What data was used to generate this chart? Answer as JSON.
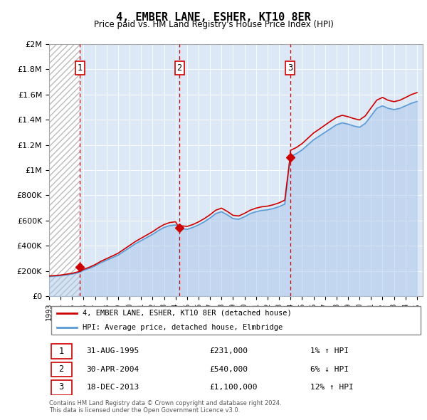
{
  "title": "4, EMBER LANE, ESHER, KT10 8ER",
  "subtitle": "Price paid vs. HM Land Registry's House Price Index (HPI)",
  "footer": "Contains HM Land Registry data © Crown copyright and database right 2024.\nThis data is licensed under the Open Government Licence v3.0.",
  "legend_line1": "4, EMBER LANE, ESHER, KT10 8ER (detached house)",
  "legend_line2": "HPI: Average price, detached house, Elmbridge",
  "sales": [
    {
      "num": 1,
      "date": "31-AUG-1995",
      "year": 1995.67,
      "price": 231000,
      "price_str": "£231,000",
      "label": "1% ↑ HPI"
    },
    {
      "num": 2,
      "date": "30-APR-2004",
      "year": 2004.33,
      "price": 540000,
      "price_str": "£540,000",
      "label": "6% ↓ HPI"
    },
    {
      "num": 3,
      "date": "18-DEC-2013",
      "year": 2013.96,
      "price": 1100000,
      "price_str": "£1,100,000",
      "label": "12% ↑ HPI"
    }
  ],
  "yticks": [
    0,
    200000,
    400000,
    600000,
    800000,
    1000000,
    1200000,
    1400000,
    1600000,
    1800000,
    2000000
  ],
  "ylabels": [
    "£0",
    "£200K",
    "£400K",
    "£600K",
    "£800K",
    "£1M",
    "£1.2M",
    "£1.4M",
    "£1.6M",
    "£1.8M",
    "£2M"
  ],
  "xmin": 1993.0,
  "xmax": 2025.5,
  "ymin": 0,
  "ymax": 2000000,
  "red_color": "#cc0000",
  "blue_color": "#5b9bd5",
  "blue_fill_color": "#aac8eb",
  "hatch_color": "#cccccc",
  "bg_color": "#dce8f5",
  "hpi_years": [
    1993.0,
    1993.5,
    1994.0,
    1994.5,
    1995.0,
    1995.5,
    1995.67,
    1996.0,
    1996.5,
    1997.0,
    1997.5,
    1998.0,
    1998.5,
    1999.0,
    1999.5,
    2000.0,
    2000.5,
    2001.0,
    2001.5,
    2002.0,
    2002.5,
    2003.0,
    2003.5,
    2004.0,
    2004.33,
    2004.5,
    2005.0,
    2005.5,
    2006.0,
    2006.5,
    2007.0,
    2007.5,
    2008.0,
    2008.5,
    2009.0,
    2009.5,
    2010.0,
    2010.5,
    2011.0,
    2011.5,
    2012.0,
    2012.5,
    2013.0,
    2013.5,
    2013.96,
    2014.0,
    2014.5,
    2015.0,
    2015.5,
    2016.0,
    2016.5,
    2017.0,
    2017.5,
    2018.0,
    2018.5,
    2019.0,
    2019.5,
    2020.0,
    2020.5,
    2021.0,
    2021.5,
    2022.0,
    2022.5,
    2023.0,
    2023.5,
    2024.0,
    2024.5,
    2025.0
  ],
  "hpi_values": [
    155000,
    158000,
    162000,
    168000,
    175000,
    185000,
    190000,
    205000,
    220000,
    240000,
    265000,
    285000,
    305000,
    325000,
    355000,
    385000,
    415000,
    440000,
    465000,
    490000,
    520000,
    545000,
    560000,
    565000,
    540000,
    535000,
    530000,
    545000,
    565000,
    590000,
    620000,
    655000,
    670000,
    645000,
    615000,
    610000,
    630000,
    655000,
    670000,
    680000,
    685000,
    695000,
    710000,
    730000,
    1100000,
    1110000,
    1130000,
    1160000,
    1200000,
    1240000,
    1270000,
    1300000,
    1330000,
    1360000,
    1375000,
    1365000,
    1350000,
    1340000,
    1370000,
    1430000,
    1490000,
    1510000,
    1490000,
    1480000,
    1490000,
    1510000,
    1530000,
    1545000
  ],
  "red_years": [
    1993.0,
    1993.5,
    1994.0,
    1994.5,
    1995.0,
    1995.5,
    1995.67,
    1996.0,
    1996.5,
    1997.0,
    1997.5,
    1998.0,
    1998.5,
    1999.0,
    1999.5,
    2000.0,
    2000.5,
    2001.0,
    2001.5,
    2002.0,
    2002.5,
    2003.0,
    2003.5,
    2004.0,
    2004.33,
    2004.5,
    2005.0,
    2005.5,
    2006.0,
    2006.5,
    2007.0,
    2007.5,
    2008.0,
    2008.5,
    2009.0,
    2009.5,
    2010.0,
    2010.5,
    2011.0,
    2011.5,
    2012.0,
    2012.5,
    2013.0,
    2013.5,
    2013.96,
    2014.0,
    2014.5,
    2015.0,
    2015.5,
    2016.0,
    2016.5,
    2017.0,
    2017.5,
    2018.0,
    2018.5,
    2019.0,
    2019.5,
    2020.0,
    2020.5,
    2021.0,
    2021.5,
    2022.0,
    2022.5,
    2023.0,
    2023.5,
    2024.0,
    2024.5,
    2025.0
  ],
  "red_values": [
    160000,
    163000,
    167000,
    174000,
    181000,
    192000,
    197000,
    213000,
    229000,
    250000,
    276000,
    297000,
    318000,
    340000,
    371000,
    402000,
    433000,
    459000,
    485000,
    511000,
    542000,
    568000,
    584000,
    590000,
    540000,
    558000,
    553000,
    568000,
    589000,
    615000,
    646000,
    682000,
    698000,
    672000,
    641000,
    636000,
    657000,
    682000,
    698000,
    709000,
    714000,
    725000,
    740000,
    761000,
    1100000,
    1157000,
    1179000,
    1210000,
    1252000,
    1294000,
    1325000,
    1357000,
    1389000,
    1419000,
    1435000,
    1424000,
    1409000,
    1398000,
    1430000,
    1493000,
    1555000,
    1577000,
    1554000,
    1543000,
    1554000,
    1576000,
    1599000,
    1615000
  ]
}
